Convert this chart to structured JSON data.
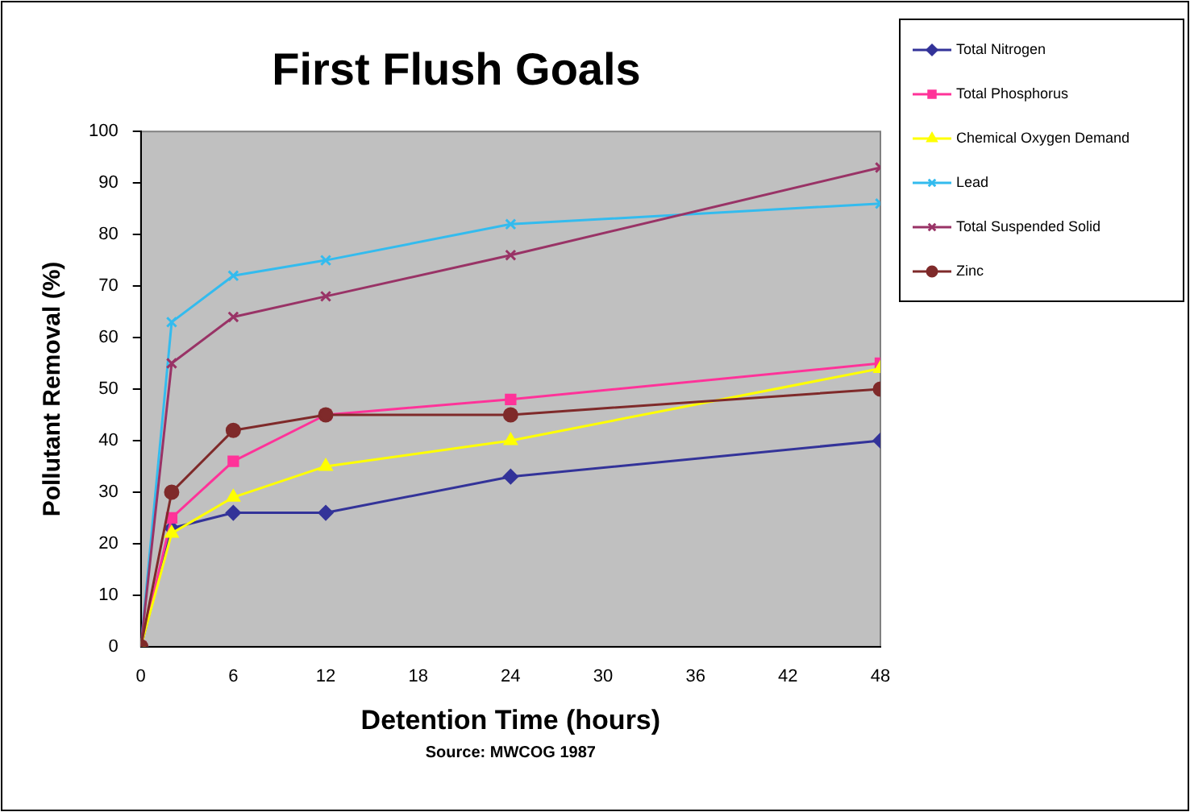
{
  "chart_data": {
    "type": "line",
    "title": "First Flush Goals",
    "xlabel": "Detention Time (hours)",
    "ylabel": "Pollutant Removal (%)",
    "x": [
      0,
      2,
      6,
      12,
      24,
      48
    ],
    "series": [
      {
        "name": "Total Nitrogen",
        "color": "#333399",
        "marker": "diamond",
        "values": [
          0,
          23,
          26,
          26,
          33,
          40
        ]
      },
      {
        "name": "Total Phosphorus",
        "color": "#ff3399",
        "marker": "square",
        "values": [
          0,
          25,
          36,
          45,
          48,
          55
        ]
      },
      {
        "name": "Chemical Oxygen Demand",
        "color": "#ffff00",
        "marker": "triangle",
        "values": [
          0,
          22,
          29,
          35,
          40,
          54
        ]
      },
      {
        "name": "Lead",
        "color": "#33bbee",
        "marker": "cross",
        "values": [
          0,
          63,
          72,
          75,
          82,
          86
        ]
      },
      {
        "name": "Total Suspended Solid",
        "color": "#993366",
        "marker": "cross",
        "values": [
          0,
          55,
          64,
          68,
          76,
          93
        ]
      },
      {
        "name": "Zinc",
        "color": "#7f2a2a",
        "marker": "circle",
        "values": [
          0,
          30,
          42,
          45,
          45,
          50
        ]
      }
    ],
    "xlim": [
      0,
      48
    ],
    "xticks": [
      0,
      6,
      12,
      18,
      24,
      30,
      36,
      42,
      48
    ],
    "ylim": [
      0,
      100
    ],
    "yticks": [
      0,
      10,
      20,
      30,
      40,
      50,
      60,
      70,
      80,
      90,
      100
    ],
    "grid": false,
    "legend": "top right",
    "line_style": "solid",
    "annotations": [
      "Source: MWCOG 1987"
    ]
  }
}
